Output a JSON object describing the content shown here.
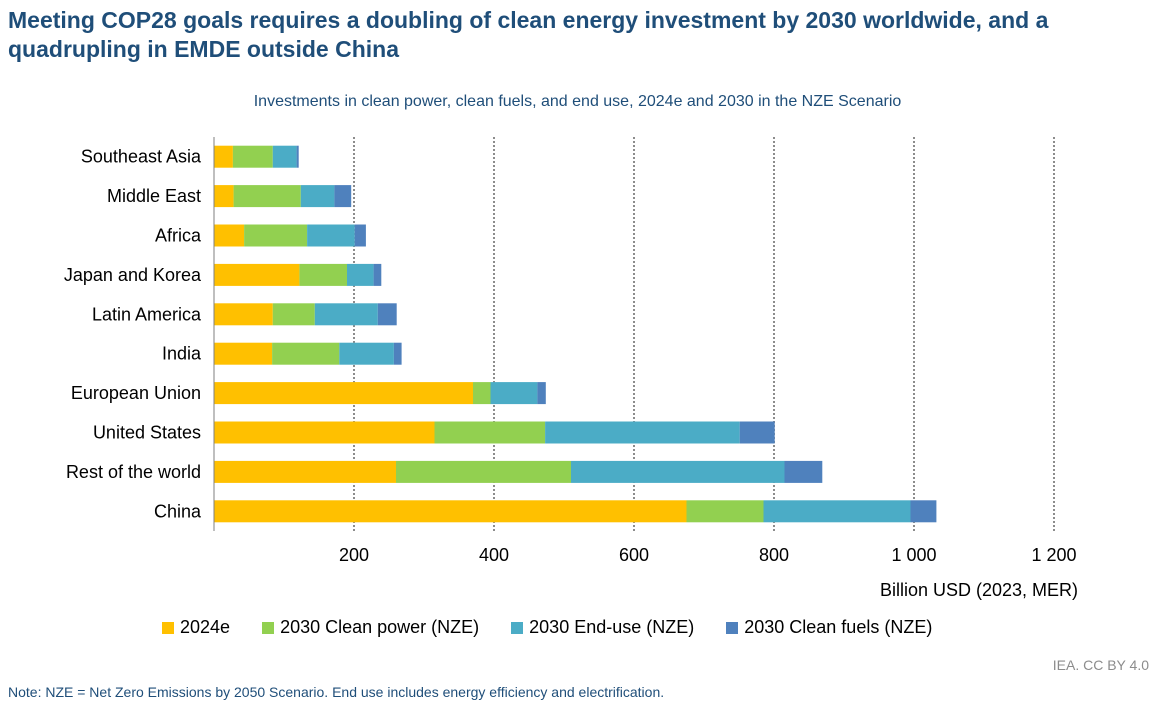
{
  "title": "Meeting COP28 goals requires a doubling of clean energy investment by 2030 worldwide, and a quadrupling in EMDE outside China",
  "credit": "IEA. CC BY 4.0",
  "note": "Note: NZE = Net Zero Emissions by 2050 Scenario. End use includes energy efficiency and electrification.",
  "chart_data": {
    "type": "bar",
    "orientation": "horizontal",
    "stacked": true,
    "title": "Investments in clean power, clean fuels, and end use, 2024e and 2030 in the NZE Scenario",
    "xlabel": "Billion USD (2023, MER)",
    "ylabel": "",
    "xlim": [
      0,
      1200
    ],
    "xticks": [
      200,
      400,
      600,
      800,
      1000,
      1200
    ],
    "xtick_labels": [
      "200",
      "400",
      "600",
      "800",
      "1 000",
      "1 200"
    ],
    "grid": "vertical dotted",
    "legend_position": "bottom",
    "categories": [
      "Southeast Asia",
      "Middle East",
      "Africa",
      "Japan and Korea",
      "Latin America",
      "India",
      "European Union",
      "United States",
      "Rest of the world",
      "China"
    ],
    "series": [
      {
        "name": "2024e",
        "color": "#ffc000",
        "values": [
          27,
          28,
          43,
          122,
          84,
          83,
          370,
          315,
          260,
          675
        ]
      },
      {
        "name": "2030 Clean power (NZE)",
        "color": "#92d050",
        "values": [
          57,
          96,
          90,
          68,
          60,
          96,
          25,
          158,
          250,
          110
        ]
      },
      {
        "name": "2030 End-use (NZE)",
        "color": "#4bacc6",
        "values": [
          34,
          48,
          68,
          38,
          90,
          78,
          67,
          278,
          305,
          210
        ]
      },
      {
        "name": "2030 Clean fuels (NZE)",
        "color": "#4f81bd",
        "values": [
          3,
          24,
          16,
          11,
          27,
          11,
          12,
          50,
          54,
          37
        ]
      }
    ]
  }
}
